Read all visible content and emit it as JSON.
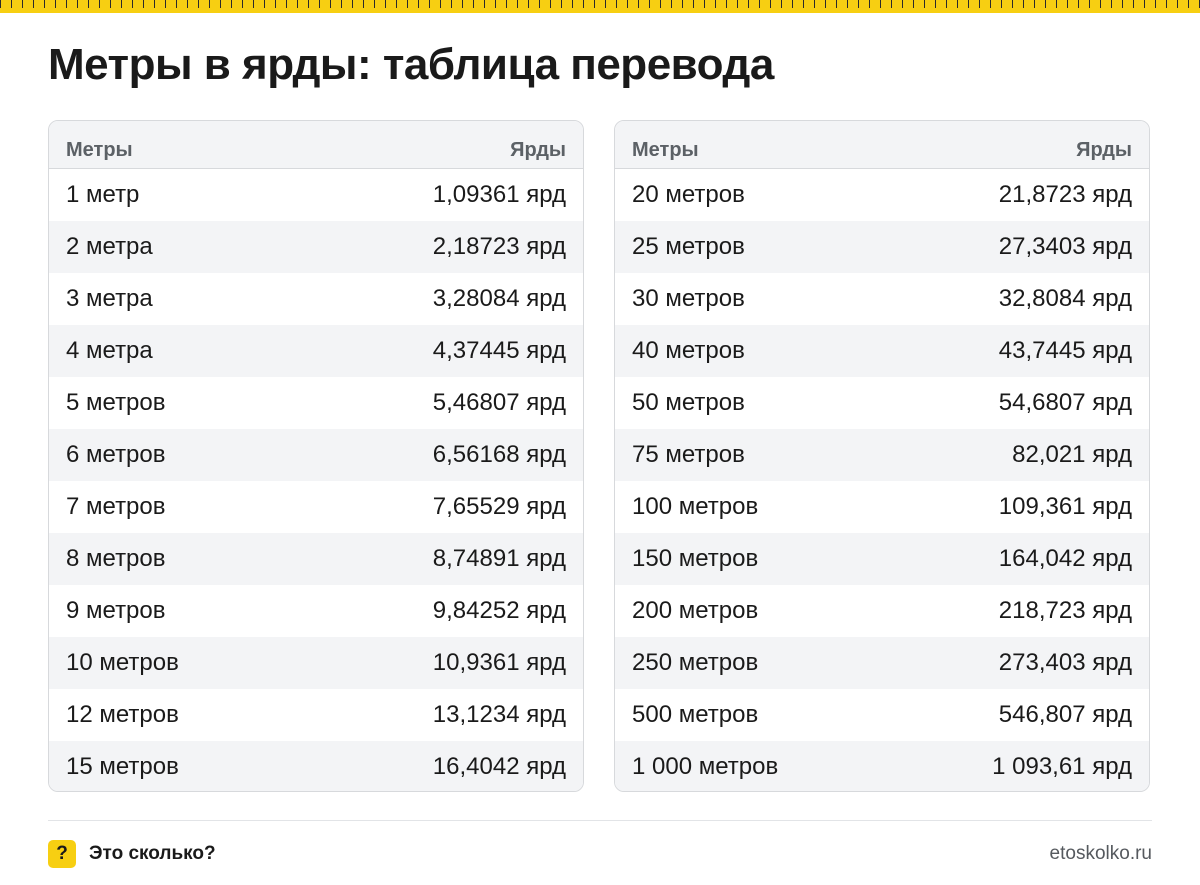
{
  "title": "Метры в ярды: таблица перевода",
  "table_left": {
    "header": {
      "meters": "Метры",
      "yards": "Ярды"
    },
    "rows": [
      {
        "meters": "1 метр",
        "yards": "1,09361 ярд"
      },
      {
        "meters": "2 метра",
        "yards": "2,18723 ярд"
      },
      {
        "meters": "3 метра",
        "yards": "3,28084 ярд"
      },
      {
        "meters": "4 метра",
        "yards": "4,37445 ярд"
      },
      {
        "meters": "5 метров",
        "yards": "5,46807 ярд"
      },
      {
        "meters": "6 метров",
        "yards": "6,56168 ярд"
      },
      {
        "meters": "7 метров",
        "yards": "7,65529 ярд"
      },
      {
        "meters": "8 метров",
        "yards": "8,74891 ярд"
      },
      {
        "meters": "9 метров",
        "yards": "9,84252 ярд"
      },
      {
        "meters": "10 метров",
        "yards": "10,9361 ярд"
      },
      {
        "meters": "12 метров",
        "yards": "13,1234 ярд"
      },
      {
        "meters": "15 метров",
        "yards": "16,4042 ярд"
      }
    ]
  },
  "table_right": {
    "header": {
      "meters": "Метры",
      "yards": "Ярды"
    },
    "rows": [
      {
        "meters": "20 метров",
        "yards": "21,8723 ярд"
      },
      {
        "meters": "25 метров",
        "yards": "27,3403 ярд"
      },
      {
        "meters": "30 метров",
        "yards": "32,8084 ярд"
      },
      {
        "meters": "40 метров",
        "yards": "43,7445 ярд"
      },
      {
        "meters": "50 метров",
        "yards": "54,6807 ярд"
      },
      {
        "meters": "75 метров",
        "yards": "82,021 ярд"
      },
      {
        "meters": "100 метров",
        "yards": "109,361 ярд"
      },
      {
        "meters": "150 метров",
        "yards": "164,042 ярд"
      },
      {
        "meters": "200 метров",
        "yards": "218,723 ярд"
      },
      {
        "meters": "250 метров",
        "yards": "273,403 ярд"
      },
      {
        "meters": "500 метров",
        "yards": "546,807 ярд"
      },
      {
        "meters": "1 000 метров",
        "yards": "1 093,61 ярд"
      }
    ]
  },
  "footer": {
    "brand_icon": "?",
    "brand_name": "Это сколько?",
    "site": "etoskolko.ru"
  },
  "colors": {
    "accent": "#f7cf12",
    "text": "#1a1a1a",
    "header_text": "#5c6166",
    "stripe": "#f3f4f6",
    "border": "#d7d9dc"
  }
}
